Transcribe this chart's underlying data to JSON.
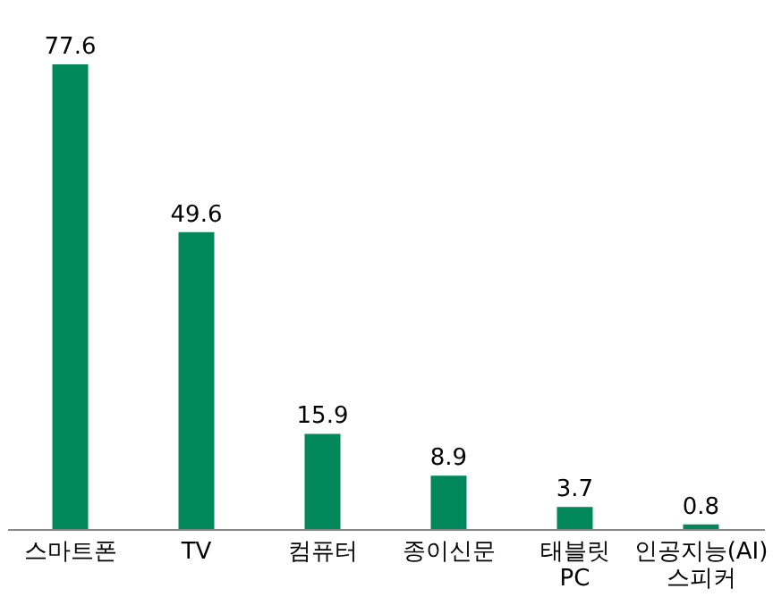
{
  "chart_data": {
    "type": "bar",
    "categories": [
      "스마트폰",
      "TV",
      "컴퓨터",
      "종이신문",
      "태블릿 PC",
      "인공지능(AI) 스피커"
    ],
    "values": [
      77.6,
      49.6,
      15.9,
      8.9,
      3.7,
      0.8
    ],
    "color": "#00875a",
    "data_labels": true
  }
}
